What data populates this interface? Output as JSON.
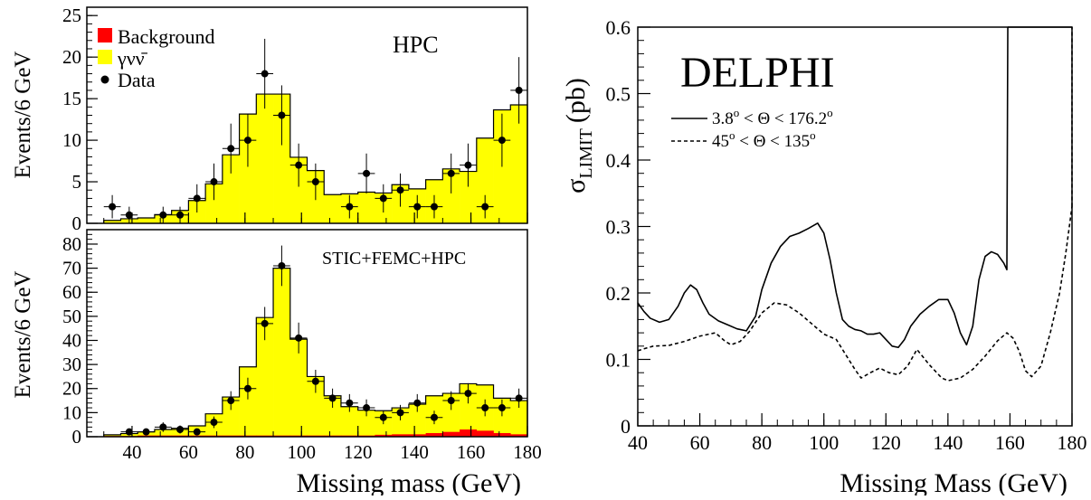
{
  "chart_data": [
    {
      "type": "bar",
      "panel": "top-left",
      "annotation": "HPC",
      "ylabel": "Events/6 GeV",
      "xlim": [
        24,
        180
      ],
      "ylim": [
        0,
        26
      ],
      "yticks": [
        0,
        5,
        10,
        15,
        20,
        25
      ],
      "legend": {
        "placement": "top-left",
        "entries": [
          {
            "label": "Background",
            "color": "#ff0000",
            "kind": "box"
          },
          {
            "label": "γνν̄",
            "color": "#ffff00",
            "kind": "box"
          },
          {
            "label": "Data",
            "color": "#000000",
            "kind": "marker"
          }
        ]
      },
      "bin_width": 6,
      "bin_edges": [
        30,
        36,
        42,
        48,
        54,
        60,
        66,
        72,
        78,
        84,
        90,
        96,
        102,
        108,
        114,
        120,
        126,
        132,
        138,
        144,
        150,
        156,
        162,
        168,
        174,
        180
      ],
      "series": [
        {
          "name": "γνν̄",
          "kind": "histogram",
          "color": "#ffff00",
          "values": [
            0.3,
            0.5,
            0.6,
            1.0,
            1.5,
            2.7,
            4.7,
            8.2,
            13.1,
            15.5,
            15.5,
            7.9,
            6.3,
            3.4,
            3.5,
            3.7,
            3.6,
            4.6,
            4.1,
            5.2,
            6.5,
            6.2,
            10.2,
            13.6,
            14.2
          ]
        },
        {
          "name": "Background",
          "kind": "histogram",
          "color": "#ff0000",
          "values": [
            0.05,
            0.05,
            0.05,
            0.05,
            0.05,
            0.05,
            0.05,
            0.05,
            0.05,
            0.05,
            0.05,
            0.05,
            0.05,
            0.05,
            0.05,
            0.05,
            0.05,
            0.05,
            0.05,
            0.05,
            0.05,
            0.05,
            0.05,
            0.05,
            0.05
          ]
        },
        {
          "name": "Data",
          "kind": "points",
          "x": [
            33,
            39,
            51,
            57,
            63,
            69,
            75,
            81,
            87,
            93,
            99,
            105,
            117,
            123,
            129,
            135,
            141,
            147,
            153,
            159,
            165,
            171,
            177
          ],
          "y": [
            2,
            1,
            1,
            1,
            3,
            5,
            9,
            10,
            18,
            13,
            7,
            5,
            2,
            6,
            3,
            4,
            2,
            2,
            6,
            7,
            2,
            10,
            16
          ],
          "yerr": [
            1.4,
            1.0,
            1.0,
            1.0,
            1.7,
            2.2,
            3.0,
            3.2,
            4.2,
            3.6,
            2.6,
            2.2,
            1.4,
            2.4,
            1.7,
            2.0,
            1.4,
            1.4,
            2.4,
            2.6,
            1.4,
            3.2,
            4.0
          ]
        }
      ]
    },
    {
      "type": "bar",
      "panel": "bottom-left",
      "annotation": "STIC+FEMC+HPC",
      "ylabel": "Events/6 GeV",
      "xlabel": "Missing mass (GeV)",
      "xlim": [
        24,
        180
      ],
      "ylim": [
        0,
        86
      ],
      "yticks": [
        0,
        10,
        20,
        30,
        40,
        50,
        60,
        70,
        80
      ],
      "xticks": [
        40,
        60,
        80,
        100,
        120,
        140,
        160,
        180
      ],
      "bin_width": 6,
      "bin_edges": [
        30,
        36,
        42,
        48,
        54,
        60,
        66,
        72,
        78,
        84,
        90,
        96,
        102,
        108,
        114,
        120,
        126,
        132,
        138,
        144,
        150,
        156,
        162,
        168,
        174,
        180
      ],
      "series": [
        {
          "name": "γνν̄",
          "kind": "histogram",
          "color": "#ffff00",
          "values": [
            0.5,
            1.0,
            1.5,
            2.5,
            3.0,
            4.0,
            9.0,
            16.0,
            28.5,
            49.0,
            69.5,
            40.0,
            24.5,
            16.5,
            12.0,
            10.5,
            10.0,
            11.0,
            12.5,
            15.5,
            16.0,
            19.0,
            19.0,
            14.5,
            14.0
          ]
        },
        {
          "name": "Background",
          "kind": "histogram",
          "color": "#ff0000",
          "values": [
            0.3,
            0.3,
            0.5,
            0.5,
            0.5,
            0.5,
            0.5,
            0.5,
            0.5,
            0.5,
            0.5,
            0.5,
            0.5,
            0.5,
            0.5,
            0.5,
            0.8,
            1.0,
            1.0,
            1.5,
            2.0,
            3.0,
            2.5,
            1.5,
            1.0
          ]
        },
        {
          "name": "Data",
          "kind": "points",
          "x": [
            39,
            45,
            51,
            57,
            63,
            69,
            75,
            81,
            87,
            93,
            99,
            105,
            111,
            117,
            123,
            129,
            135,
            141,
            147,
            153,
            159,
            165,
            171,
            177
          ],
          "y": [
            2,
            2,
            4,
            3,
            2,
            6,
            15,
            20,
            47,
            71,
            41,
            23,
            16,
            14,
            12,
            8,
            10,
            14,
            8,
            15,
            18,
            12,
            12,
            16
          ],
          "yerr": [
            1.4,
            1.4,
            2.0,
            1.7,
            1.4,
            2.4,
            3.9,
            4.5,
            6.9,
            8.4,
            6.4,
            4.8,
            4.0,
            3.7,
            3.5,
            2.8,
            3.2,
            3.7,
            2.8,
            3.9,
            4.2,
            3.5,
            3.5,
            4.0
          ]
        }
      ]
    },
    {
      "type": "line",
      "panel": "right",
      "title": "DELPHI",
      "ylabel": "σ",
      "ylabel_sub": "LIMIT",
      "ylabel_unit": "(pb)",
      "xlabel": "Missing Mass (GeV)",
      "xlim": [
        40,
        180
      ],
      "ylim": [
        0,
        0.6
      ],
      "xticks": [
        40,
        60,
        80,
        100,
        120,
        140,
        160,
        180
      ],
      "yticks": [
        0,
        0.1,
        0.2,
        0.3,
        0.4,
        0.5,
        0.6
      ],
      "ytick_labels": [
        "0",
        "0.1",
        "0.2",
        "0.3",
        "0.4",
        "0.5",
        "0.6"
      ],
      "legend": {
        "placement": "top-left",
        "entries": [
          {
            "label_parts": [
              "3.8",
              "o",
              " < Θ < 176.2",
              "o"
            ],
            "style": "solid"
          },
          {
            "label_parts": [
              "45",
              "o",
              " < Θ < 135",
              "o"
            ],
            "style": "dashed"
          }
        ]
      },
      "series": [
        {
          "style": "solid",
          "x": [
            40,
            42,
            44,
            47,
            50,
            53,
            55,
            57,
            59,
            61,
            63,
            66,
            69,
            72,
            75,
            78,
            80,
            83,
            86,
            89,
            92,
            95,
            98,
            100,
            102,
            104,
            106,
            108,
            110,
            112,
            114,
            116,
            118,
            120,
            122,
            124,
            126,
            128,
            131,
            134,
            137,
            140,
            142,
            144,
            146,
            148,
            150,
            152,
            154,
            156,
            158,
            159,
            159.3
          ],
          "y": [
            0.185,
            0.172,
            0.162,
            0.156,
            0.16,
            0.18,
            0.2,
            0.212,
            0.205,
            0.185,
            0.168,
            0.158,
            0.152,
            0.146,
            0.143,
            0.165,
            0.205,
            0.245,
            0.27,
            0.285,
            0.29,
            0.297,
            0.305,
            0.29,
            0.25,
            0.2,
            0.16,
            0.15,
            0.145,
            0.143,
            0.138,
            0.138,
            0.14,
            0.13,
            0.12,
            0.118,
            0.13,
            0.15,
            0.168,
            0.18,
            0.19,
            0.19,
            0.17,
            0.14,
            0.122,
            0.15,
            0.22,
            0.255,
            0.262,
            0.258,
            0.245,
            0.235,
            0.6
          ]
        },
        {
          "style": "solid",
          "x": [
            159.3,
            180
          ],
          "y": [
            0.6,
            0.6
          ]
        },
        {
          "style": "dashed",
          "x": [
            40,
            42,
            45,
            50,
            55,
            60,
            65,
            68,
            70,
            73,
            76,
            80,
            84,
            88,
            92,
            96,
            100,
            104,
            108,
            110,
            112,
            115,
            118,
            121,
            124,
            127,
            130,
            134,
            138,
            140,
            144,
            148,
            152,
            156,
            159,
            161,
            163,
            165,
            167,
            170,
            173,
            176,
            178,
            180
          ],
          "y": [
            0.113,
            0.116,
            0.12,
            0.121,
            0.127,
            0.135,
            0.14,
            0.128,
            0.122,
            0.127,
            0.142,
            0.17,
            0.185,
            0.182,
            0.17,
            0.154,
            0.138,
            0.13,
            0.1,
            0.085,
            0.072,
            0.08,
            0.087,
            0.08,
            0.077,
            0.09,
            0.115,
            0.092,
            0.072,
            0.068,
            0.072,
            0.085,
            0.105,
            0.128,
            0.14,
            0.132,
            0.112,
            0.083,
            0.074,
            0.09,
            0.14,
            0.2,
            0.26,
            0.33
          ]
        },
        {
          "style": "dashed",
          "x": [
            180,
            180
          ],
          "y": [
            0.33,
            0.6
          ]
        }
      ]
    }
  ]
}
